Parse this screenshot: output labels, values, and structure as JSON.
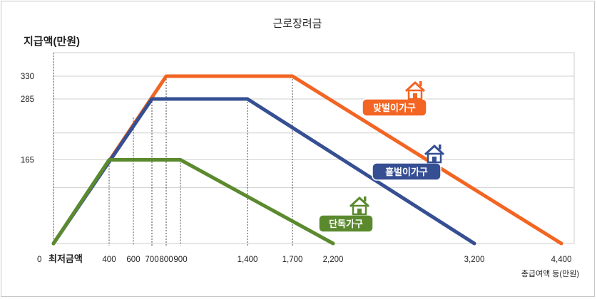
{
  "chart_data": {
    "type": "line",
    "title": "근로장려금",
    "ylabel": "지급액(만원)",
    "xlabel": "총급여액 등(만원)",
    "x_ticks": [
      "400",
      "600",
      "700",
      "800",
      "900",
      "1,400",
      "1,700",
      "2,200",
      "3,200",
      "4,400"
    ],
    "x_tick_values": [
      400,
      600,
      700,
      800,
      900,
      1400,
      1700,
      2200,
      3200,
      4400
    ],
    "y_ticks": [
      "330",
      "285",
      "165",
      "0"
    ],
    "y_tick_values": [
      330,
      285,
      165,
      0
    ],
    "min_wage_label": "최저금액",
    "grid": true,
    "series": [
      {
        "name": "맞벌이가구",
        "color": "#f26522",
        "points": [
          [
            0,
            0
          ],
          [
            800,
            330
          ],
          [
            1700,
            330
          ],
          [
            4400,
            0
          ]
        ]
      },
      {
        "name": "홑벌이가구",
        "color": "#364f93",
        "points": [
          [
            0,
            0
          ],
          [
            700,
            285
          ],
          [
            1400,
            285
          ],
          [
            3200,
            0
          ]
        ]
      },
      {
        "name": "단독가구",
        "color": "#5b8a2e",
        "points": [
          [
            0,
            0
          ],
          [
            400,
            165
          ],
          [
            900,
            165
          ],
          [
            2200,
            0
          ]
        ]
      }
    ],
    "icon": "house-icon"
  }
}
